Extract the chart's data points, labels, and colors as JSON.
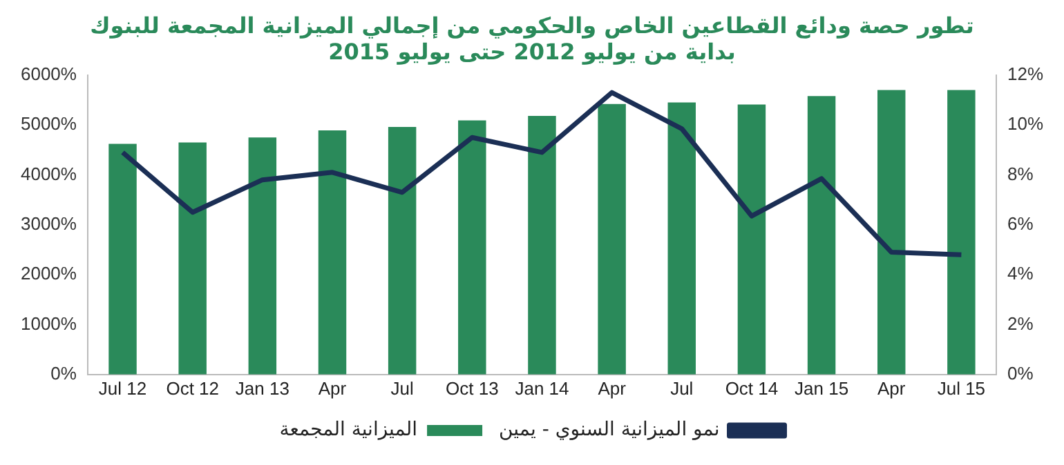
{
  "chart_data": {
    "type": "bar",
    "title": "تطور حصة ودائع القطاعين الخاص والحكومي من إجمالي الميزانية المجمعة للبنوك",
    "subtitle": "بداية من يوليو 2012 حتى يوليو 2015",
    "categories": [
      "Jul 12",
      "Oct 12",
      "Jan 13",
      "Apr",
      "Jul",
      "Oct 13",
      "Jan 14",
      "Apr",
      "Jul",
      "Oct 14",
      "Jan 15",
      "Apr",
      "Jul 15"
    ],
    "series": [
      {
        "name": "الميزانية المجمعة",
        "color": "#2a8a5a",
        "values": [
          4620,
          4650,
          4750,
          4890,
          4960,
          5090,
          5180,
          5420,
          5450,
          5410,
          5580,
          5700,
          5700
        ]
      },
      {
        "name": "نمو الميزانية السنوي - يمين",
        "type": "line",
        "axis": "y2",
        "color": "#1b2f55",
        "values": [
          8.9,
          6.5,
          7.8,
          8.1,
          7.3,
          9.5,
          8.9,
          11.3,
          9.85,
          6.35,
          7.85,
          4.9,
          4.8
        ]
      }
    ],
    "ylim": [
      0,
      6000
    ],
    "yticks": [
      {
        "value": 0,
        "label": "0%"
      },
      {
        "value": 1000,
        "label": "1000%"
      },
      {
        "value": 2000,
        "label": "2000%"
      },
      {
        "value": 3000,
        "label": "3000%"
      },
      {
        "value": 4000,
        "label": "4000%"
      },
      {
        "value": 5000,
        "label": "5000%"
      },
      {
        "value": 6000,
        "label": "6000%"
      }
    ],
    "y2lim": [
      0,
      12
    ],
    "y2ticks": [
      {
        "value": 0,
        "label": "0%"
      },
      {
        "value": 2,
        "label": "2%"
      },
      {
        "value": 4,
        "label": "4%"
      },
      {
        "value": 6,
        "label": "6%"
      },
      {
        "value": 8,
        "label": "8%"
      },
      {
        "value": 10,
        "label": "10%"
      },
      {
        "value": 12,
        "label": "12%"
      }
    ],
    "grid": false,
    "legend": "bottom",
    "marker": "none",
    "line_style": "solid"
  }
}
